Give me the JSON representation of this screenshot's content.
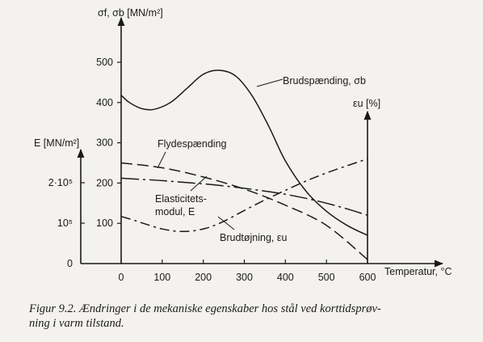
{
  "chart_data": {
    "type": "line",
    "x": {
      "label": "Temperatur, °C",
      "range": [
        0,
        600
      ],
      "ticks": [
        "0",
        "100",
        "200",
        "300",
        "400",
        "500",
        "600"
      ]
    },
    "y_left_stress": {
      "label": "σf, σb [MN/m²]",
      "range": [
        0,
        500
      ],
      "ticks": [
        "100",
        "200",
        "300",
        "400",
        "500"
      ]
    },
    "y_left_E": {
      "label": "E [MN/m²]",
      "ticks": [
        "0",
        "10⁵",
        "2·10⁵"
      ]
    },
    "y_right_strain": {
      "label": "εu [%]"
    },
    "series": [
      {
        "name": "Brudspænding, σb",
        "style": "solid",
        "x": [
          0,
          20,
          50,
          80,
          120,
          160,
          200,
          240,
          280,
          320,
          360,
          400,
          450,
          500,
          550,
          600
        ],
        "y": [
          418,
          400,
          385,
          383,
          400,
          435,
          470,
          480,
          465,
          415,
          340,
          255,
          180,
          130,
          95,
          70
        ]
      },
      {
        "name": "Flydespænding",
        "style": "dashed",
        "x": [
          0,
          100,
          200,
          300,
          400,
          500,
          600
        ],
        "y": [
          250,
          238,
          215,
          185,
          145,
          95,
          10
        ]
      },
      {
        "name": "Elasticitets-modul, E",
        "style": "dash-dot-long",
        "x": [
          0,
          50,
          100,
          150,
          200,
          250,
          300,
          350,
          400,
          450,
          500,
          550,
          600
        ],
        "y": [
          212,
          209,
          206,
          202,
          198,
          193,
          187,
          180,
          172,
          162,
          150,
          136,
          120
        ]
      },
      {
        "name": "Brudtøjning, εu",
        "style": "dash-dot",
        "x": [
          0,
          30,
          60,
          100,
          140,
          180,
          220,
          260,
          300,
          350,
          400,
          450,
          500,
          550,
          600
        ],
        "y": [
          117,
          108,
          98,
          86,
          80,
          82,
          92,
          110,
          132,
          158,
          182,
          205,
          225,
          243,
          260
        ]
      }
    ]
  },
  "caption": {
    "line1": "Figur 9.2. Ændringer i de mekaniske egenskaber hos stål ved korttidsprøv-",
    "line2": "ning i varm tilstand."
  }
}
